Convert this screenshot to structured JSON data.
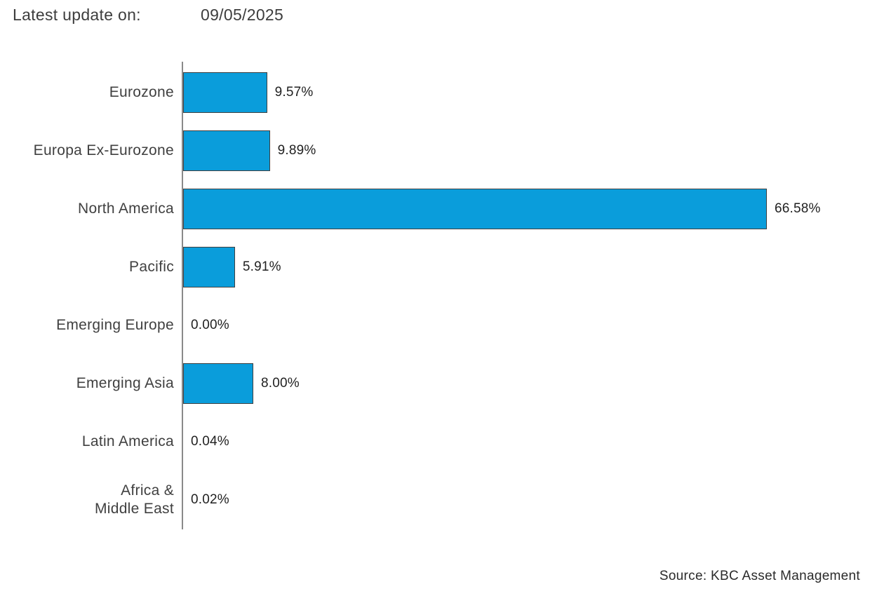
{
  "header": {
    "label": "Latest update on:",
    "date": "09/05/2025"
  },
  "footer": {
    "source": "Source: KBC Asset Management"
  },
  "colors": {
    "bar_fill": "#0a9ddb",
    "bar_border": "#404040",
    "axis_line": "#8a8a8a",
    "category_text": "#404040",
    "value_text": "#1f1f1f"
  },
  "chart_data": {
    "type": "bar",
    "orientation": "horizontal",
    "title": "",
    "xlabel": "",
    "ylabel": "",
    "xlim": [
      0,
      70
    ],
    "grid": false,
    "legend": false,
    "categories": [
      "Eurozone",
      "Europa Ex-Eurozone",
      "North America",
      "Pacific",
      "Emerging Europe",
      "Emerging Asia",
      "Latin America",
      "Africa &\nMiddle East"
    ],
    "values": [
      9.57,
      9.89,
      66.58,
      5.91,
      0.0,
      8.0,
      0.04,
      0.02
    ],
    "value_labels": [
      "9.57%",
      "9.89%",
      "66.58%",
      "5.91%",
      "0.00%",
      "8.00%",
      "0.04%",
      "0.02%"
    ]
  }
}
